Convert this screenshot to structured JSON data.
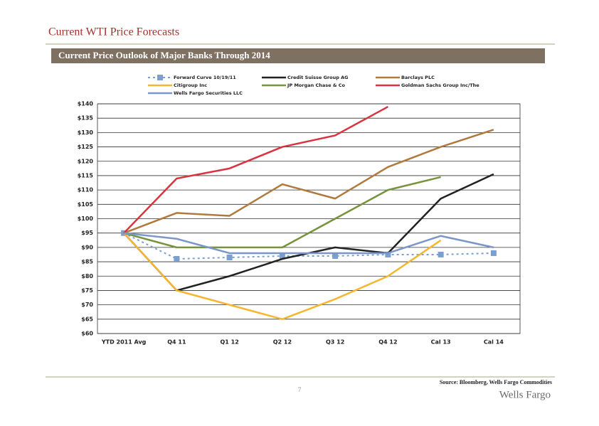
{
  "header": {
    "title": "Current WTI Price Forecasts",
    "banner": "Current Price Outlook of Major Banks Through 2014"
  },
  "footer": {
    "source": "Source: Bloomberg, Wells Fargo Commodities",
    "page": "7",
    "brand": "Wells Fargo"
  },
  "chart_data": {
    "type": "line",
    "categories": [
      "YTD 2011 Avg",
      "Q4 11",
      "Q1 12",
      "Q2 12",
      "Q3 12",
      "Q4 12",
      "Cal 13",
      "Cal 14"
    ],
    "ylim": [
      60,
      140
    ],
    "yticks": [
      {
        "value": 60,
        "label": "$60"
      },
      {
        "value": 65,
        "label": "$65"
      },
      {
        "value": 70,
        "label": "$70"
      },
      {
        "value": 75,
        "label": "$75"
      },
      {
        "value": 80,
        "label": "$80"
      },
      {
        "value": 85,
        "label": "$85"
      },
      {
        "value": 90,
        "label": "$90"
      },
      {
        "value": 95,
        "label": "$95"
      },
      {
        "value": 100,
        "label": "$100"
      },
      {
        "value": 105,
        "label": "$105"
      },
      {
        "value": 110,
        "label": "$110"
      },
      {
        "value": 115,
        "label": "$115"
      },
      {
        "value": 120,
        "label": "$120"
      },
      {
        "value": 125,
        "label": "$125"
      },
      {
        "value": 130,
        "label": "$130"
      },
      {
        "value": 135,
        "label": "$135"
      },
      {
        "value": 140,
        "label": "$140"
      }
    ],
    "grid": true,
    "series": [
      {
        "name": "Forward Curve 10/19/11",
        "color": "#7b9fd0",
        "dashed": true,
        "marker": "square",
        "values": [
          95,
          86,
          86.5,
          87,
          87,
          87.5,
          87.5,
          88
        ]
      },
      {
        "name": "Credit Suisse Group AG",
        "color": "#222222",
        "values": [
          95,
          75,
          80,
          86,
          90,
          88,
          107,
          115.5
        ]
      },
      {
        "name": "Barclays PLC",
        "color": "#b07a3e",
        "values": [
          95,
          102,
          101,
          112,
          107,
          118,
          125,
          131
        ]
      },
      {
        "name": "Citigroup Inc",
        "color": "#f5b731",
        "values": [
          95,
          75,
          70,
          65,
          72,
          80,
          92.5,
          null
        ]
      },
      {
        "name": "JP Morgan Chase & Co",
        "color": "#77933c",
        "values": [
          95,
          90,
          90,
          90,
          100,
          110,
          114.5,
          null
        ]
      },
      {
        "name": "Goldman Sachs Group Inc/The",
        "color": "#d9333f",
        "values": [
          95,
          114,
          117.5,
          125,
          129,
          139,
          null,
          null
        ]
      },
      {
        "name": "Wells Fargo Securities LLC",
        "color": "#7b96c9",
        "values": [
          95,
          93,
          88,
          88,
          88,
          88,
          94,
          90
        ]
      }
    ]
  }
}
